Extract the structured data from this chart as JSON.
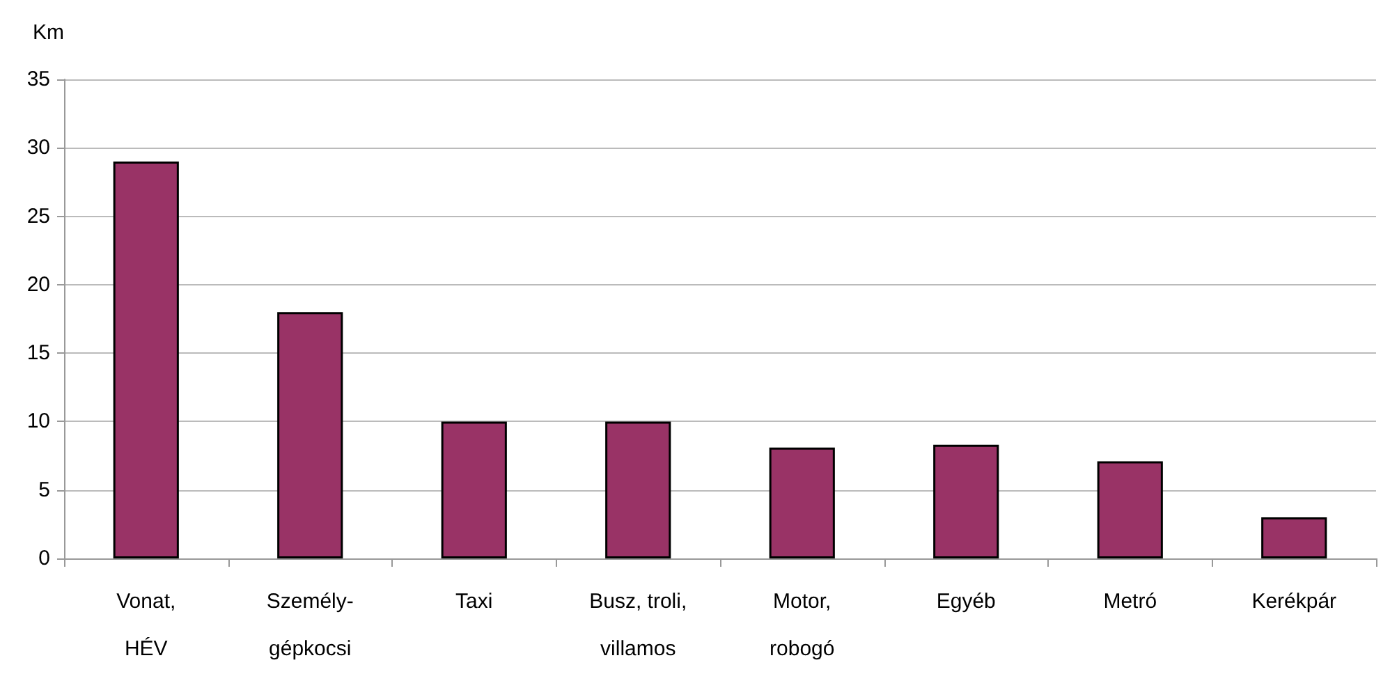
{
  "chart_data": {
    "type": "bar",
    "ylabel": "Km",
    "categories": [
      "Vonat,\nHÉV",
      "Személy-\ngépkocsi",
      "Taxi",
      "Busz, troli,\nvillamos",
      "Motor,\nrobogó",
      "Egyéb",
      "Metró",
      "Kerékpár"
    ],
    "values": [
      29,
      18,
      10,
      10,
      8.1,
      8.3,
      7.1,
      3.0
    ],
    "color": "#993366",
    "ylim": [
      0,
      35
    ],
    "yticks": [
      0,
      5,
      10,
      15,
      20,
      25,
      30,
      35
    ],
    "grid": "y"
  }
}
